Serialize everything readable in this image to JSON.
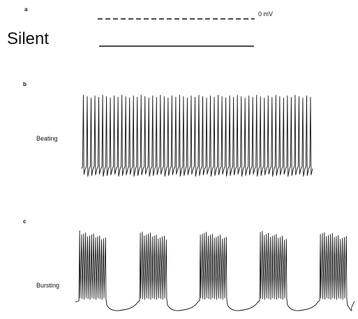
{
  "panels": [
    {
      "letter": "a",
      "label": "Silent"
    },
    {
      "letter": "b",
      "label": "Beating"
    },
    {
      "letter": "c",
      "label": "Bursting"
    }
  ],
  "reference_label": "0 mV",
  "traces": {
    "silent": {
      "pattern": "flat",
      "spike_count": 0
    },
    "beating": {
      "pattern": "tonic spiking",
      "spike_count": 60
    },
    "bursting": {
      "pattern": "burst",
      "bursts": 5,
      "spikes_per_burst": 14
    }
  },
  "colors": {
    "ink": "#111111",
    "background": "#ffffff"
  }
}
